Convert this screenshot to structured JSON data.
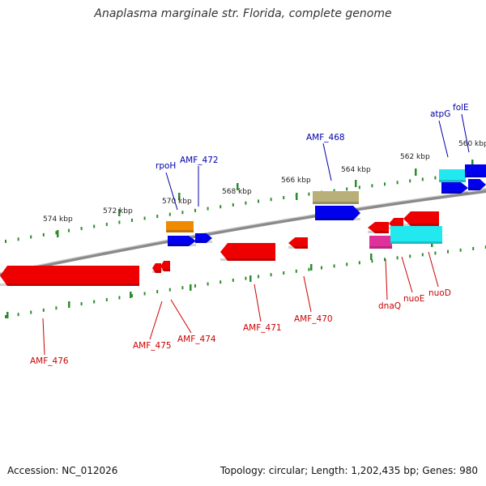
{
  "title": "Anaplasma marginale str. Florida, complete genome",
  "footer": {
    "accession": "Accession: NC_012026",
    "summary": "Topology: circular; Length: 1,202,435 bp; Genes: 980"
  },
  "colors": {
    "backbone": "#8a8a8a",
    "tick": "#2e8b2e",
    "forward_gene": "#0000ee",
    "reverse_gene": "#ee0000",
    "forward_label": "#0000aa",
    "reverse_label": "#cc0000",
    "orange": "#f08a00",
    "olive": "#b8b078",
    "cyan": "#22e8f0",
    "magenta": "#e0309a"
  },
  "scale_labels": [
    "574 kbp",
    "572 kbp",
    "570 kbp",
    "568 kbp",
    "566 kbp",
    "564 kbp",
    "562 kbp",
    "560 kbp"
  ],
  "forward_labels": [
    "rpoH",
    "AMF_472",
    "AMF_468",
    "atpG",
    "folE"
  ],
  "reverse_labels": [
    "AMF_476",
    "AMF_475",
    "AMF_474",
    "AMF_471",
    "AMF_470",
    "dnaQ",
    "nuoE",
    "nuoD"
  ]
}
